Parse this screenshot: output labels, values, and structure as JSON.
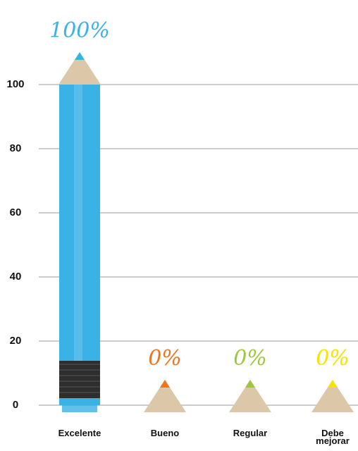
{
  "chart_data": {
    "type": "bar",
    "categories": [
      "Excelente",
      "Bueno",
      "Regular",
      "Debe mejorar"
    ],
    "values": [
      100,
      0,
      0,
      0
    ],
    "value_labels": [
      "100%",
      "0%",
      "0%",
      "0%"
    ],
    "colors": [
      "#3bb2e6",
      "#e87722",
      "#9dc83b",
      "#f5e400"
    ],
    "ylim": [
      0,
      100
    ],
    "yticks": [
      0,
      20,
      40,
      60,
      80,
      100
    ],
    "grid": true
  }
}
